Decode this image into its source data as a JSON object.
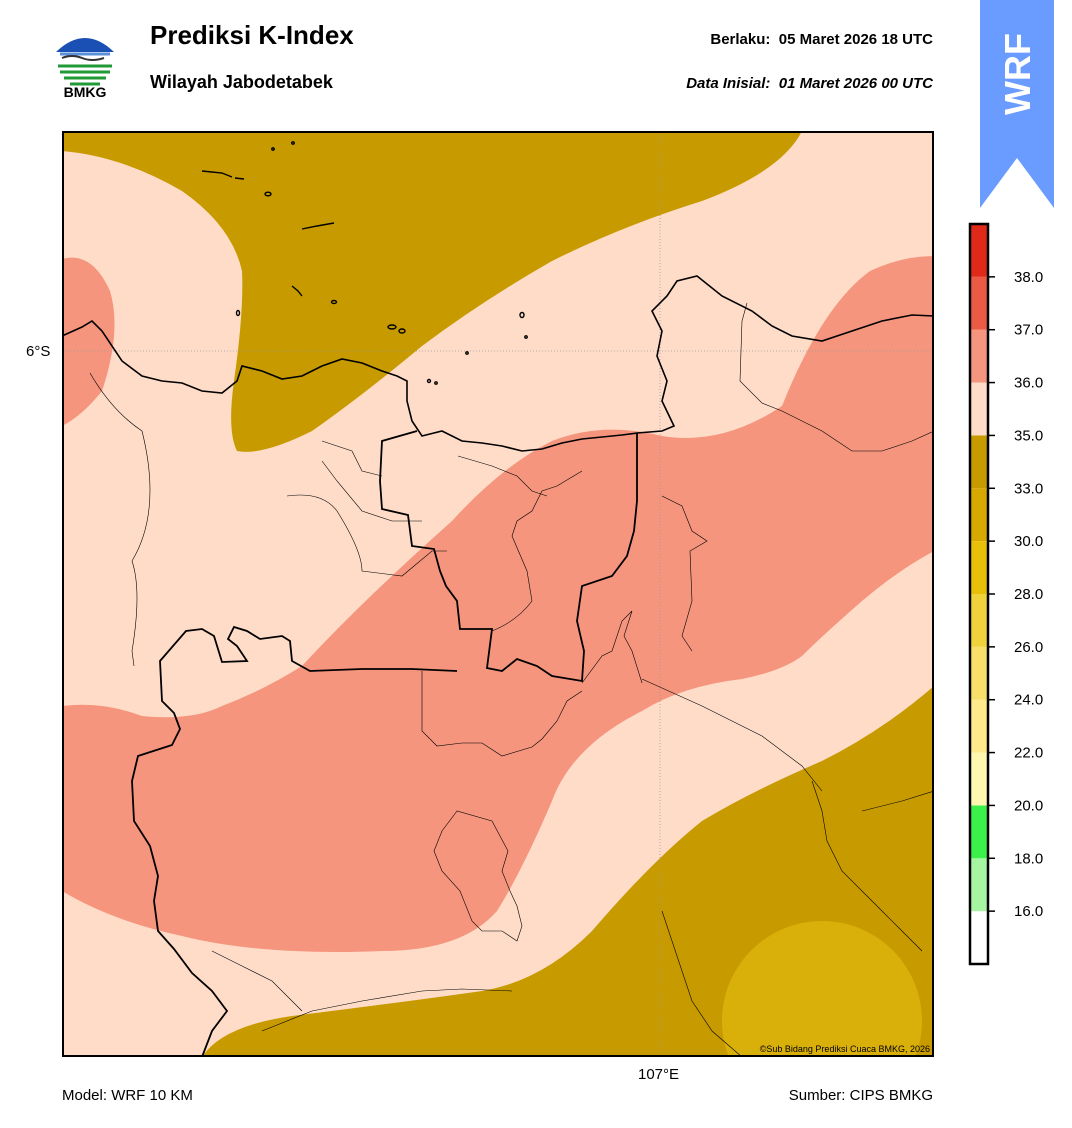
{
  "header": {
    "logo_text": "BMKG",
    "title": "Prediksi K-Index",
    "subtitle": "Wilayah Jabodetabek",
    "valid_label": "Berlaku:",
    "valid_value": "05 Maret 2026 18 UTC",
    "init_label": "Data Inisial:",
    "init_value": "01 Maret 2026 00 UTC"
  },
  "badge": {
    "text": "WRF",
    "color": "#6a9bff"
  },
  "map": {
    "lat_label": "6°S",
    "lon_label": "107°E",
    "credit": "©Sub Bidang Prediksi Cuaca BMKG, 2026"
  },
  "colorbar": {
    "ticks": [
      "16.0",
      "18.0",
      "20.0",
      "22.0",
      "24.0",
      "26.0",
      "28.0",
      "30.0",
      "33.0",
      "35.0",
      "36.0",
      "37.0",
      "38.0"
    ],
    "colors": [
      "#ffffff",
      "#a6f5a0",
      "#3bf04a",
      "#fff7b0",
      "#ffe98a",
      "#f7df6a",
      "#f0d23c",
      "#e8c00a",
      "#d6a800",
      "#c79a00",
      "#ffdcc8",
      "#f5957e",
      "#eb5a45",
      "#df2a1a"
    ]
  },
  "footer": {
    "model": "Model: WRF 10 KM",
    "source": "Sumber: CIPS BMKG"
  }
}
